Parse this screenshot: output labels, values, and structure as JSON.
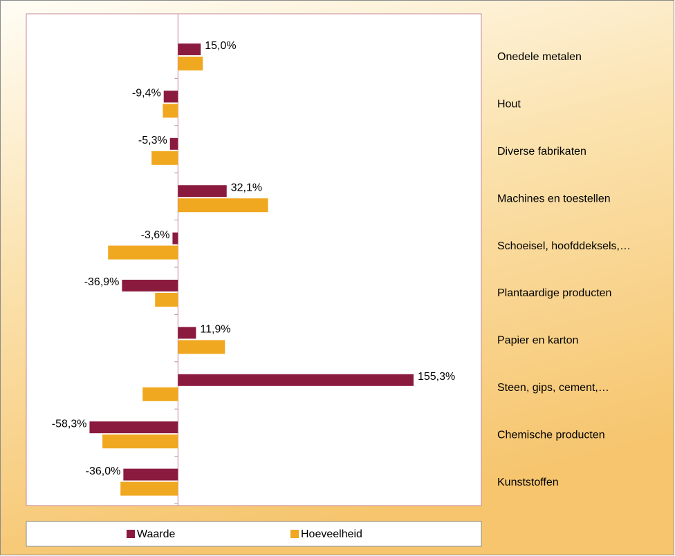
{
  "chart_data": {
    "type": "barh",
    "categories": [
      "Onedele metalen",
      "Hout",
      "Diverse fabrikaten",
      "Machines en toestellen",
      "Schoeisel, hoofddeksels,…",
      "Plantaardige producten",
      "Papier en karton",
      "Steen, gips, cement,…",
      "Chemische producten",
      "Kunststoffen"
    ],
    "series": [
      {
        "name": "Waarde",
        "color": "#8b1a3f",
        "values": [
          15.0,
          -9.4,
          -5.3,
          32.1,
          -3.6,
          -36.9,
          11.9,
          155.3,
          -58.3,
          -36.0
        ],
        "value_labels": [
          "15,0%",
          "-9,4%",
          "-5,3%",
          "32,1%",
          "-3,6%",
          "-36,9%",
          "11,9%",
          "155,3%",
          "-58,3%",
          "-36,0%"
        ]
      },
      {
        "name": "Hoeveelheid",
        "color": "#f0a820",
        "values": [
          16.4,
          -10.0,
          -17.4,
          59.4,
          -46.1,
          -15.1,
          31.0,
          -23.3,
          -49.8,
          -37.9
        ]
      }
    ],
    "xlim": [
      -100,
      200
    ],
    "legend": "bottom"
  }
}
